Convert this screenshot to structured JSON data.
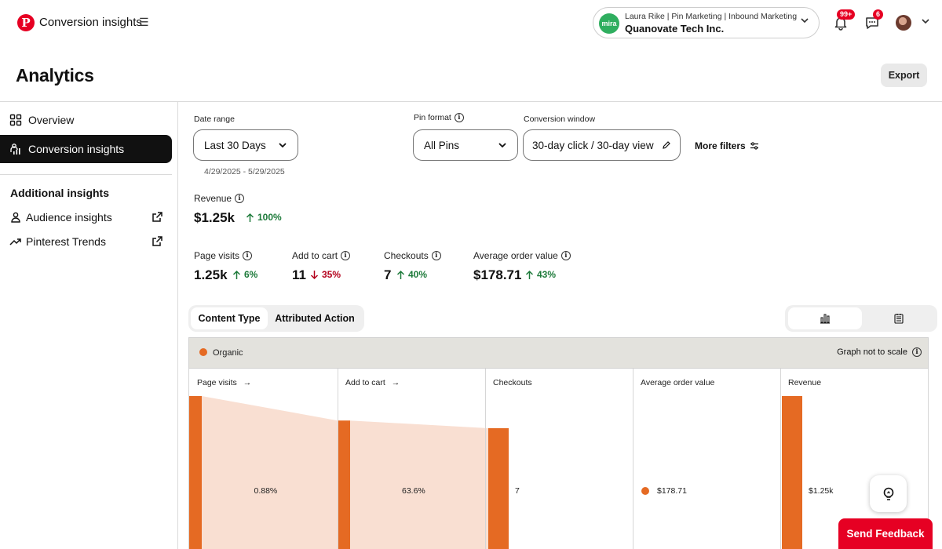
{
  "header": {
    "app_title": "Conversion insights",
    "account": {
      "avatar_text": "mira",
      "subtitle": "Laura Rike | Pin Marketing | Inbound Marketing",
      "name": "Quanovate Tech Inc."
    },
    "notifications_badge": "99+",
    "messages_badge": "6"
  },
  "page": {
    "title": "Analytics",
    "export_label": "Export"
  },
  "sidebar": {
    "items": [
      {
        "label": "Overview",
        "icon": "grid-icon"
      },
      {
        "label": "Conversion insights",
        "icon": "chart-people-icon",
        "active": true
      }
    ],
    "additional_heading": "Additional insights",
    "links": [
      {
        "label": "Audience insights",
        "icon": "person-icon"
      },
      {
        "label": "Pinterest Trends",
        "icon": "trend-icon"
      }
    ]
  },
  "filters": {
    "date_range": {
      "label": "Date range",
      "value": "Last 30 Days",
      "sub": "4/29/2025 - 5/29/2025"
    },
    "pin_format": {
      "label": "Pin format",
      "value": "All Pins"
    },
    "conversion_window": {
      "label": "Conversion window",
      "value": "30-day click / 30-day view"
    },
    "more_filters": "More filters"
  },
  "metrics": {
    "revenue": {
      "label": "Revenue",
      "value": "$1.25k",
      "change": "100%",
      "direction": "up"
    },
    "page_visits": {
      "label": "Page visits",
      "value": "1.25k",
      "change": "6%",
      "direction": "up"
    },
    "add_to_cart": {
      "label": "Add to cart",
      "value": "11",
      "change": "35%",
      "direction": "down"
    },
    "checkouts": {
      "label": "Checkouts",
      "value": "7",
      "change": "40%",
      "direction": "up"
    },
    "aov": {
      "label": "Average order value",
      "value": "$178.71",
      "change": "43%",
      "direction": "up"
    }
  },
  "tabs": [
    "Content Type",
    "Attributed Action"
  ],
  "chart": {
    "legend": "Organic",
    "note": "Graph not to scale",
    "columns": [
      "Page visits",
      "Add to cart",
      "Checkouts",
      "Average order value",
      "Revenue"
    ]
  },
  "chart_data": {
    "type": "bar",
    "title": "",
    "series": [
      {
        "name": "Organic"
      }
    ],
    "categories": [
      "Page visits",
      "Add to cart",
      "Checkouts",
      "Average order value",
      "Revenue"
    ],
    "value_labels": [
      "",
      "",
      "7",
      "$178.71",
      "$1.25k"
    ],
    "flow_labels": [
      "0.88%",
      "63.6%"
    ],
    "relative_bar_level": [
      1.0,
      0.84,
      0.79,
      null,
      1.0
    ],
    "not_to_scale": true,
    "colors": {
      "bar": "#e56a23",
      "flow": "#f9dfd2"
    }
  },
  "feedback": {
    "send_label": "Send Feedback"
  }
}
